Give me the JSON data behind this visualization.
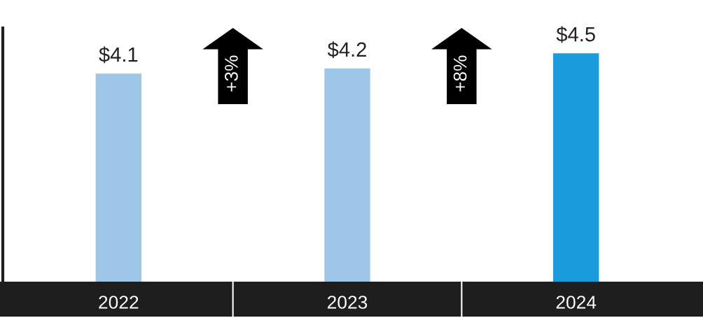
{
  "chart_data": {
    "type": "bar",
    "categories": [
      "2022",
      "2023",
      "2024"
    ],
    "values": [
      4.1,
      4.2,
      4.5
    ],
    "colors": [
      "#9dc6e8",
      "#9dc6e8",
      "#1a9bdb"
    ],
    "value_labels": [
      "$4.1",
      "$4.2",
      "$4.5"
    ],
    "ylim": [
      0,
      5
    ],
    "tick_labels": "x",
    "annotations": [
      "+3%",
      "+8%"
    ]
  }
}
